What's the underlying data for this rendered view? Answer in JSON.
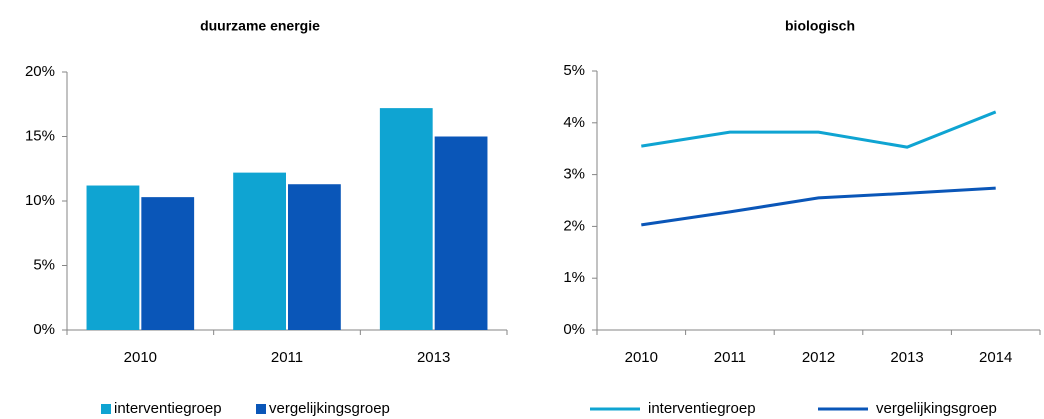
{
  "chart_data": [
    {
      "type": "bar",
      "title": "duurzame energie",
      "categories": [
        "2010",
        "2011",
        "2013"
      ],
      "series": [
        {
          "name": "interventiegroep",
          "color": "#0fa4d2",
          "values": [
            11.2,
            12.2,
            17.2
          ]
        },
        {
          "name": "vergelijkingsgroep",
          "color": "#0a56b8",
          "values": [
            10.3,
            11.3,
            15.0
          ]
        }
      ],
      "ylim": [
        0,
        20
      ],
      "yticks": [
        {
          "value": 0,
          "label": "0%"
        },
        {
          "value": 5,
          "label": "5%"
        },
        {
          "value": 10,
          "label": "10%"
        },
        {
          "value": 15,
          "label": "15%"
        },
        {
          "value": 20,
          "label": "20%"
        }
      ],
      "legend": "bottom"
    },
    {
      "type": "line",
      "title": "biologisch",
      "categories": [
        "2010",
        "2011",
        "2012",
        "2013",
        "2014"
      ],
      "series": [
        {
          "name": "interventiegroep",
          "color": "#0fa4d2",
          "values": [
            3.55,
            3.82,
            3.82,
            3.53,
            4.21
          ]
        },
        {
          "name": "vergelijkingsgroep",
          "color": "#0a56b8",
          "values": [
            2.03,
            2.28,
            2.55,
            2.64,
            2.74
          ]
        }
      ],
      "ylim": [
        0,
        5
      ],
      "yticks": [
        {
          "value": 0,
          "label": "0%"
        },
        {
          "value": 1,
          "label": "1%"
        },
        {
          "value": 2,
          "label": "2%"
        },
        {
          "value": 3,
          "label": "3%"
        },
        {
          "value": 4,
          "label": "4%"
        },
        {
          "value": 5,
          "label": "5%"
        }
      ],
      "legend": "bottom"
    }
  ]
}
